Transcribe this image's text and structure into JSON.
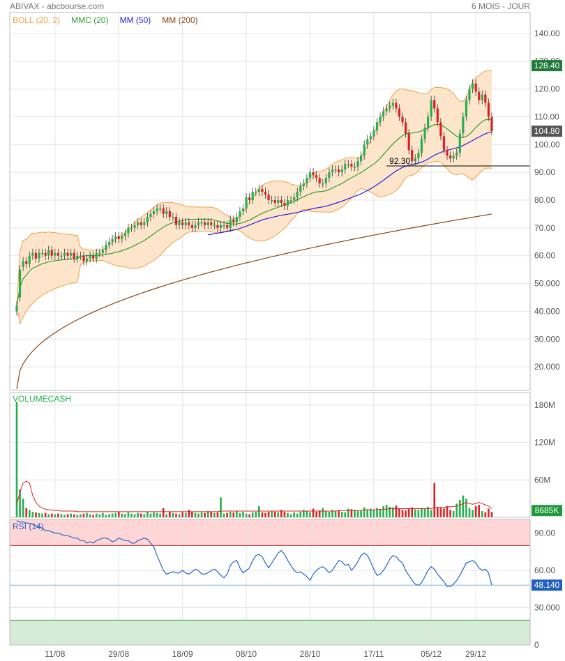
{
  "header": {
    "source": "ABIVAX - abcbourse.com",
    "period": "6 MOIS - JOUR"
  },
  "colors": {
    "up": "#22b14c",
    "down": "#e02020",
    "boll_line": "#f0a040",
    "boll_fill": "#fde5cc",
    "mmc20": "#2aa02a",
    "mm50": "#2020e0",
    "mm200": "#8b4513",
    "grid": "#e4e4e4",
    "rsi_line": "#2166c9",
    "rsi_over": "#ffd5d5",
    "rsi_under": "#d7ecd7",
    "volume_avg": "#e02020"
  },
  "chart_data": [
    {
      "type": "candlestick",
      "legend": [
        {
          "label": "BOLL (20, 2)",
          "color": "#f0a040"
        },
        {
          "label": "MMC (20)",
          "color": "#2aa02a"
        },
        {
          "label": "MM (50)",
          "color": "#2020e0"
        },
        {
          "label": "MM (200)",
          "color": "#8b4513"
        }
      ],
      "y_ticks": [
        "140.00",
        "130.00",
        "120.00",
        "110.00",
        "100.00",
        "90.00",
        "80.00",
        "70.00",
        "60.00",
        "50.000",
        "40.000",
        "30.000",
        "20.000"
      ],
      "y_tick_values": [
        140,
        130,
        120,
        110,
        100,
        90,
        80,
        70,
        60,
        50,
        40,
        30,
        20
      ],
      "ylim": [
        11.5,
        147.5
      ],
      "x_ticks": [
        "11/08",
        "29/08",
        "18/09",
        "08/10",
        "28/10",
        "17/11",
        "05/12",
        "29/12"
      ],
      "last_price_label": "104.80",
      "last_price": 104.8,
      "upper_band_label": "128.40",
      "upper_band": 128.4,
      "support_label": "92.30",
      "support": 92.3,
      "closes": [
        42,
        55,
        58,
        57,
        60,
        61,
        59,
        61,
        61,
        60,
        62,
        60,
        61,
        60,
        60,
        61,
        60,
        61,
        59,
        60,
        60,
        58,
        59,
        60,
        59,
        61,
        61,
        62,
        64,
        65,
        66,
        67,
        66,
        67,
        68,
        70,
        70,
        71,
        72,
        71,
        72,
        74,
        75,
        76,
        77,
        77,
        75,
        76,
        74,
        74,
        71,
        72,
        71,
        72,
        71,
        70,
        71,
        72,
        72,
        71,
        72,
        71,
        71,
        70,
        71,
        71,
        70,
        73,
        72,
        74,
        76,
        77,
        81,
        80,
        83,
        83,
        84,
        83,
        82,
        80,
        80,
        79,
        80,
        79,
        78,
        80,
        80,
        81,
        83,
        85,
        86,
        88,
        90,
        89,
        88,
        86,
        86,
        88,
        90,
        91,
        91,
        90,
        91,
        93,
        93,
        92,
        92,
        94,
        96,
        100,
        102,
        103,
        105,
        108,
        110,
        112,
        113,
        114,
        115,
        113,
        110,
        108,
        104,
        98,
        94,
        95,
        97,
        102,
        106,
        110,
        116,
        113,
        108,
        103,
        98,
        96,
        95,
        96,
        97,
        104,
        110,
        116,
        120,
        122,
        119,
        116,
        118,
        115,
        110,
        104.8
      ],
      "opens": [
        40,
        45,
        56,
        58,
        57,
        60,
        61,
        59,
        61,
        61,
        60,
        62,
        60,
        61,
        60,
        60,
        61,
        60,
        61,
        59,
        60,
        60,
        58,
        59,
        60,
        59,
        61,
        61,
        62,
        64,
        65,
        66,
        67,
        66,
        67,
        68,
        70,
        70,
        71,
        72,
        71,
        72,
        74,
        75,
        76,
        77,
        77,
        75,
        76,
        74,
        74,
        71,
        72,
        71,
        72,
        71,
        70,
        71,
        72,
        72,
        71,
        72,
        71,
        71,
        70,
        71,
        71,
        70,
        73,
        72,
        74,
        76,
        77,
        81,
        80,
        83,
        83,
        84,
        83,
        82,
        80,
        80,
        79,
        80,
        79,
        78,
        80,
        80,
        81,
        83,
        85,
        86,
        88,
        90,
        89,
        88,
        86,
        86,
        88,
        90,
        91,
        91,
        90,
        91,
        93,
        93,
        92,
        92,
        94,
        96,
        100,
        102,
        103,
        105,
        108,
        110,
        112,
        113,
        114,
        115,
        113,
        110,
        108,
        104,
        98,
        94,
        95,
        97,
        102,
        106,
        110,
        116,
        113,
        108,
        103,
        98,
        96,
        95,
        96,
        97,
        104,
        110,
        116,
        120,
        122,
        119,
        116,
        118,
        115,
        110
      ]
    },
    {
      "type": "bar",
      "title": "VOLUMECASH",
      "y_ticks": [
        "180M",
        "120M",
        "60M"
      ],
      "y_tick_values": [
        180,
        120,
        60
      ],
      "ylim": [
        0,
        200
      ],
      "last_label": "8685K",
      "last_value": 8.685,
      "values": [
        185,
        45,
        30,
        15,
        12,
        9,
        8,
        7,
        6,
        7,
        5,
        6,
        5,
        6,
        5,
        4,
        5,
        6,
        5,
        4,
        5,
        6,
        7,
        5,
        4,
        6,
        5,
        7,
        4,
        5,
        6,
        7,
        9,
        6,
        5,
        8,
        6,
        5,
        7,
        6,
        5,
        9,
        6,
        8,
        7,
        6,
        15,
        5,
        9,
        7,
        6,
        5,
        8,
        7,
        12,
        9,
        7,
        6,
        8,
        7,
        10,
        9,
        7,
        8,
        32,
        6,
        7,
        9,
        8,
        10,
        7,
        9,
        6,
        5,
        8,
        9,
        18,
        8,
        7,
        9,
        10,
        9,
        8,
        12,
        9,
        7,
        5,
        8,
        6,
        9,
        12,
        10,
        8,
        14,
        9,
        11,
        15,
        10,
        9,
        12,
        10,
        11,
        9,
        8,
        14,
        13,
        12,
        10,
        11,
        16,
        13,
        14,
        12,
        15,
        13,
        18,
        20,
        17,
        16,
        19,
        14,
        12,
        11,
        14,
        16,
        13,
        12,
        15,
        14,
        17,
        12,
        55,
        16,
        15,
        14,
        18,
        12,
        10,
        22,
        28,
        35,
        30,
        15,
        12,
        18,
        20,
        10,
        8,
        14,
        8.685
      ],
      "avg": [
        20,
        40,
        55,
        58,
        55,
        35,
        24,
        18,
        15,
        13,
        12,
        12,
        11,
        11,
        10,
        10,
        10,
        10,
        10,
        9,
        9,
        9,
        9,
        9,
        9,
        9,
        9,
        9,
        9,
        9,
        9,
        9,
        9,
        9,
        9,
        9,
        9,
        9,
        9,
        9,
        9,
        9,
        9,
        9,
        9,
        9,
        9,
        9,
        9,
        9,
        9,
        9,
        9,
        9,
        9,
        9,
        9,
        9,
        9,
        9,
        9,
        9,
        9,
        9,
        10,
        10,
        10,
        10,
        10,
        10,
        10,
        10,
        10,
        10,
        10,
        10,
        10,
        10,
        10,
        10,
        10,
        10,
        10,
        10,
        10,
        10,
        10,
        10,
        10,
        10,
        10,
        10,
        10,
        10,
        10,
        10,
        10,
        10,
        10,
        10,
        10,
        11,
        11,
        11,
        11,
        11,
        11,
        11,
        11,
        12,
        12,
        12,
        12,
        12,
        13,
        13,
        13,
        14,
        14,
        14,
        14,
        14,
        14,
        14,
        14,
        14,
        14,
        14,
        14,
        14,
        14,
        16,
        16,
        16,
        16,
        17,
        17,
        17,
        18,
        20,
        22,
        24,
        22,
        21,
        22,
        24,
        22,
        20,
        18,
        14
      ]
    },
    {
      "type": "line",
      "title": "RSI (14)",
      "y_ticks": [
        "90.00",
        "60.00",
        "30.000",
        "0"
      ],
      "y_tick_values": [
        90,
        60,
        30,
        0
      ],
      "ylim": [
        0,
        101
      ],
      "overbought": 80,
      "oversold": 20,
      "reference": 48.14,
      "last_label": "48.140",
      "last_value": 48.14,
      "values": [
        100,
        99,
        99,
        98,
        98,
        97,
        96,
        95,
        94,
        92,
        92,
        91,
        90,
        90,
        89,
        88,
        88,
        87,
        86,
        86,
        84,
        84,
        82,
        83,
        82,
        84,
        85,
        86,
        86,
        85,
        83,
        84,
        86,
        85,
        84,
        84,
        82,
        82,
        84,
        85,
        86,
        85,
        82,
        79,
        72,
        66,
        60,
        57,
        58,
        59,
        58,
        58,
        60,
        58,
        57,
        59,
        61,
        60,
        57,
        57,
        58,
        60,
        61,
        59,
        56,
        54,
        57,
        64,
        67,
        68,
        62,
        58,
        60,
        62,
        68,
        72,
        73,
        71,
        66,
        62,
        66,
        70,
        74,
        76,
        73,
        68,
        64,
        60,
        58,
        59,
        57,
        55,
        52,
        57,
        60,
        62,
        63,
        61,
        58,
        60,
        64,
        68,
        67,
        64,
        65,
        60,
        63,
        67,
        72,
        74,
        72,
        67,
        61,
        56,
        57,
        60,
        64,
        69,
        72,
        71,
        68,
        66,
        60,
        56,
        52,
        49,
        48,
        50,
        55,
        60,
        63,
        61,
        57,
        54,
        51,
        47,
        47,
        49,
        52,
        56,
        61,
        66,
        67,
        68,
        66,
        62,
        60,
        61,
        58,
        48.14
      ]
    }
  ]
}
